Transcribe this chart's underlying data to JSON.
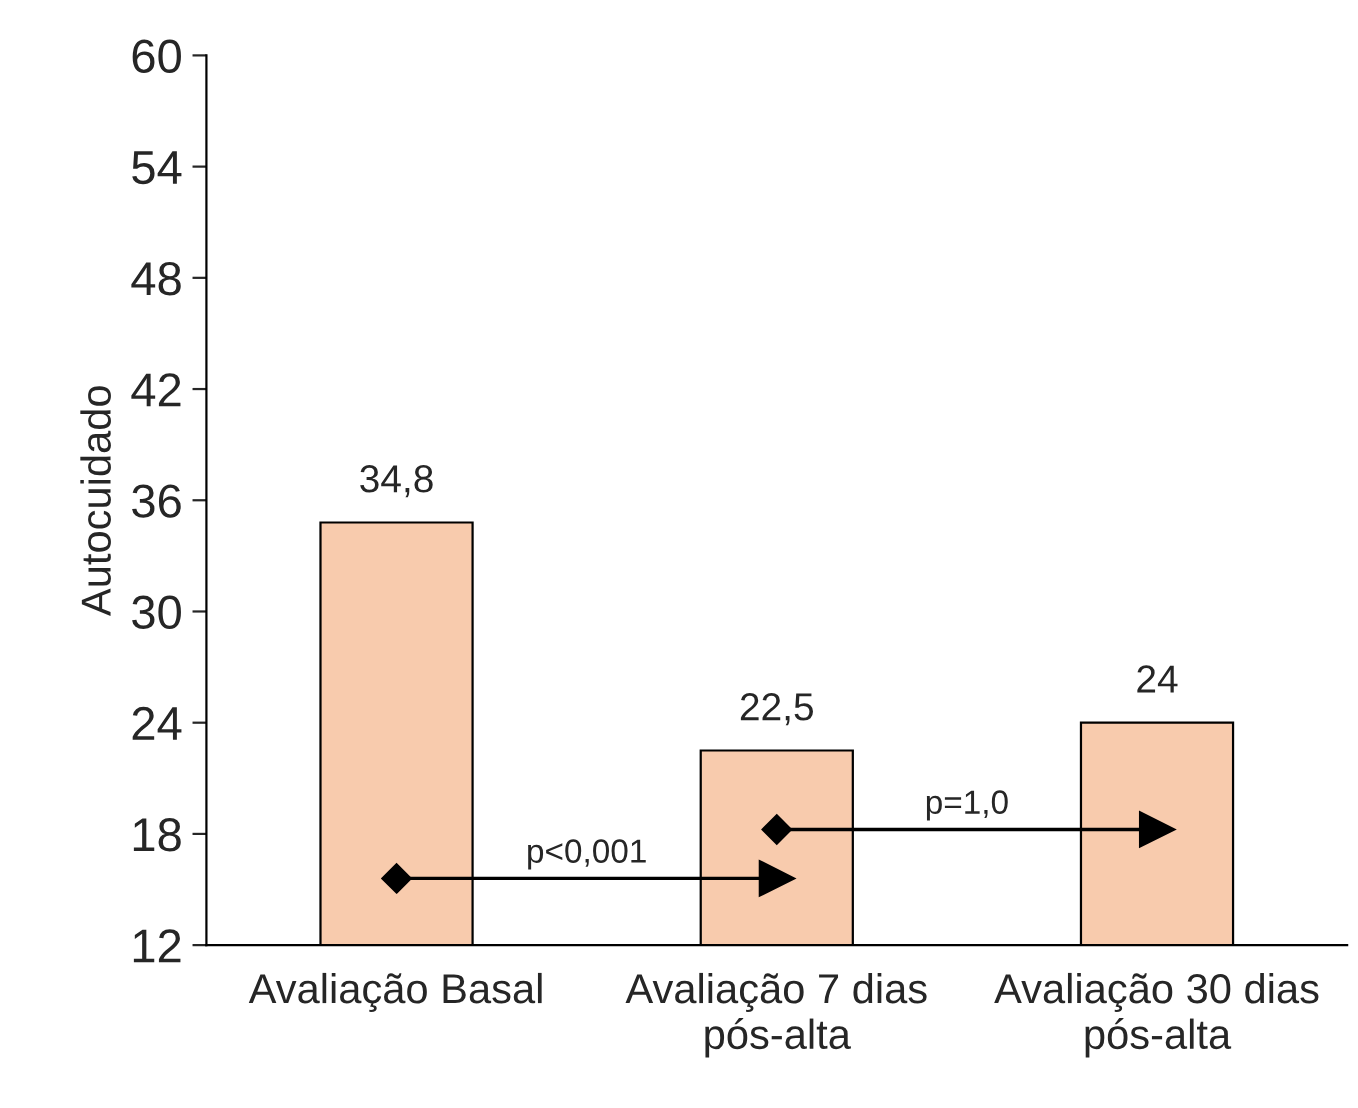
{
  "chart_data": {
    "type": "bar",
    "ylabel": "Autocuidado",
    "categories": [
      "Avaliação Basal",
      "Avaliação 7 dias\npós-alta",
      "Avaliação 30 dias\npós-alta"
    ],
    "values": [
      34.8,
      22.5,
      24
    ],
    "value_labels": [
      "34,8",
      "22,5",
      "24"
    ],
    "color": "#f8cbad",
    "ylim": [
      12,
      60
    ],
    "yticks": [
      12,
      18,
      24,
      30,
      36,
      42,
      48,
      54,
      60
    ],
    "grid": false,
    "annotations": [
      "p<0,001",
      "p=1,0"
    ]
  }
}
